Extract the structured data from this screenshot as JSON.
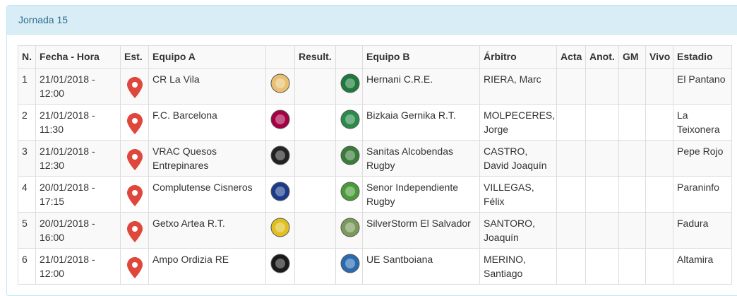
{
  "panel": {
    "title": "Jornada 15"
  },
  "table": {
    "headers": [
      "N.",
      "Fecha - Hora",
      "Est.",
      "Equipo A",
      "",
      "Result.",
      "",
      "Equipo B",
      "Árbitro",
      "Acta",
      "Anot.",
      "GM",
      "Vivo",
      "Estadio"
    ],
    "rows": [
      {
        "n": "1",
        "fecha": "21/01/2018 - 12:00",
        "equipo_a": "CR La Vila",
        "logo_a": "#e8c070",
        "result": "",
        "logo_b": "#1e7a3a",
        "equipo_b": "Hernani C.R.E.",
        "arbitro": "RIERA, Marc",
        "estadio": "El Pantano"
      },
      {
        "n": "2",
        "fecha": "21/01/2018 - 11:30",
        "equipo_a": "F.C. Barcelona",
        "logo_a": "#a50044",
        "result": "",
        "logo_b": "#2a8a4a",
        "equipo_b": "Bizkaia Gernika R.T.",
        "arbitro": "MOLPECERES, Jorge",
        "estadio": "La Teixonera"
      },
      {
        "n": "3",
        "fecha": "21/01/2018 - 12:30",
        "equipo_a": "VRAC Quesos Entrepinares",
        "logo_a": "#222222",
        "result": "",
        "logo_b": "#3a7a3a",
        "equipo_b": "Sanitas Alcobendas Rugby",
        "arbitro": "CASTRO, David Joaquín",
        "estadio": "Pepe Rojo"
      },
      {
        "n": "4",
        "fecha": "20/01/2018 - 17:15",
        "equipo_a": "Complutense Cisneros",
        "logo_a": "#1a3a8a",
        "result": "",
        "logo_b": "#4a9a3a",
        "equipo_b": "Senor Independiente Rugby",
        "arbitro": "VILLEGAS, Félix",
        "estadio": "Paraninfo"
      },
      {
        "n": "5",
        "fecha": "20/01/2018 - 16:00",
        "equipo_a": "Getxo Artea R.T.",
        "logo_a": "#e0c020",
        "result": "",
        "logo_b": "#7a9a5a",
        "equipo_b": "SilverStorm El Salvador",
        "arbitro": "SANTORO, Joaquín",
        "estadio": "Fadura"
      },
      {
        "n": "6",
        "fecha": "21/01/2018 - 12:00",
        "equipo_a": "Ampo Ordizia RE",
        "logo_a": "#1a1a1a",
        "result": "",
        "logo_b": "#2a6ab0",
        "equipo_b": "UE Santboiana",
        "arbitro": "MERINO, Santiago",
        "estadio": "Altamira"
      }
    ]
  },
  "colors": {
    "pin": "#e0473c",
    "heading_bg": "#d9edf7",
    "heading_text": "#31708f"
  }
}
